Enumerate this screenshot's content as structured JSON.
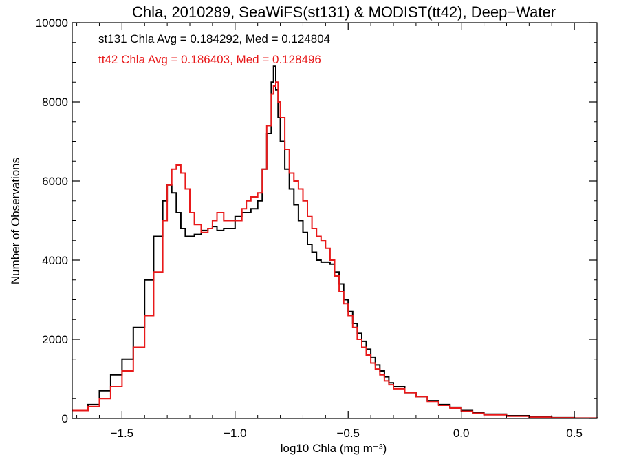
{
  "chart_data": {
    "type": "line",
    "title": "Chla, 2010289, SeaWiFS(st131) & MODIST(tt42), Deep−Water",
    "xlabel": "log10 Chla (mg m⁻³)",
    "ylabel": "Number of Observations",
    "xlim": [
      -1.72,
      0.6
    ],
    "ylim": [
      0,
      10000
    ],
    "xticks": [
      -1.5,
      -1.0,
      -0.5,
      0.0,
      0.5
    ],
    "xtick_labels": [
      "−1.5",
      "−1.0",
      "−0.5",
      "0.0",
      "0.5"
    ],
    "yticks": [
      0,
      2000,
      4000,
      6000,
      8000,
      10000
    ],
    "ytick_labels": [
      "0",
      "2000",
      "4000",
      "6000",
      "8000",
      "10000"
    ],
    "grid": false,
    "annotations": [
      {
        "text": "st131 Chla Avg = 0.184292, Med = 0.124804",
        "color": "#000000"
      },
      {
        "text": "tt42 Chla Avg = 0.186403, Med = 0.128496",
        "color": "#e8191a"
      }
    ],
    "series": [
      {
        "color": "#000000",
        "step": true,
        "x": [
          -1.72,
          -1.65,
          -1.6,
          -1.55,
          -1.5,
          -1.45,
          -1.4,
          -1.36,
          -1.32,
          -1.3,
          -1.28,
          -1.26,
          -1.24,
          -1.22,
          -1.2,
          -1.18,
          -1.15,
          -1.12,
          -1.1,
          -1.08,
          -1.05,
          -1.0,
          -0.97,
          -0.95,
          -0.93,
          -0.9,
          -0.88,
          -0.86,
          -0.84,
          -0.83,
          -0.82,
          -0.81,
          -0.8,
          -0.78,
          -0.76,
          -0.74,
          -0.72,
          -0.7,
          -0.68,
          -0.66,
          -0.64,
          -0.62,
          -0.6,
          -0.58,
          -0.56,
          -0.54,
          -0.52,
          -0.5,
          -0.48,
          -0.46,
          -0.44,
          -0.42,
          -0.4,
          -0.38,
          -0.36,
          -0.34,
          -0.32,
          -0.3,
          -0.25,
          -0.2,
          -0.15,
          -0.1,
          -0.05,
          0.0,
          0.05,
          0.1,
          0.2,
          0.3,
          0.4,
          0.5,
          0.6
        ],
        "y": [
          200,
          350,
          700,
          1100,
          1500,
          2300,
          3500,
          4600,
          5500,
          5900,
          5700,
          5200,
          4800,
          4600,
          4600,
          4650,
          4750,
          4800,
          4850,
          4750,
          4800,
          5100,
          5200,
          5200,
          5300,
          5500,
          6300,
          7200,
          8500,
          8900,
          8300,
          7600,
          7000,
          6300,
          5800,
          5400,
          5000,
          4700,
          4400,
          4200,
          4000,
          3950,
          3950,
          3900,
          3700,
          3400,
          3000,
          2700,
          2400,
          2150,
          1950,
          1750,
          1550,
          1350,
          1200,
          1050,
          900,
          800,
          650,
          550,
          450,
          350,
          280,
          200,
          150,
          110,
          70,
          40,
          20,
          10,
          5
        ]
      },
      {
        "color": "#e8191a",
        "step": true,
        "x": [
          -1.72,
          -1.65,
          -1.6,
          -1.55,
          -1.5,
          -1.45,
          -1.4,
          -1.36,
          -1.32,
          -1.3,
          -1.28,
          -1.26,
          -1.24,
          -1.22,
          -1.2,
          -1.18,
          -1.15,
          -1.12,
          -1.1,
          -1.08,
          -1.05,
          -1.0,
          -0.97,
          -0.95,
          -0.93,
          -0.9,
          -0.88,
          -0.86,
          -0.84,
          -0.83,
          -0.82,
          -0.81,
          -0.8,
          -0.78,
          -0.76,
          -0.74,
          -0.72,
          -0.7,
          -0.68,
          -0.66,
          -0.64,
          -0.62,
          -0.6,
          -0.58,
          -0.56,
          -0.54,
          -0.52,
          -0.5,
          -0.48,
          -0.46,
          -0.44,
          -0.42,
          -0.4,
          -0.38,
          -0.36,
          -0.34,
          -0.32,
          -0.3,
          -0.25,
          -0.2,
          -0.15,
          -0.1,
          -0.05,
          0.0,
          0.05,
          0.1,
          0.2,
          0.3,
          0.4,
          0.5,
          0.6
        ],
        "y": [
          200,
          300,
          500,
          800,
          1200,
          1800,
          2600,
          3700,
          5000,
          5900,
          6300,
          6400,
          6200,
          5800,
          5200,
          4900,
          4700,
          4800,
          5000,
          5200,
          5000,
          5000,
          5300,
          5500,
          5600,
          5700,
          6300,
          7400,
          8200,
          8400,
          8500,
          8000,
          7600,
          6800,
          6200,
          6000,
          5800,
          5500,
          5100,
          4800,
          4600,
          4500,
          4300,
          4000,
          3600,
          3200,
          2900,
          2600,
          2300,
          2000,
          1800,
          1600,
          1400,
          1250,
          1100,
          950,
          850,
          750,
          650,
          550,
          430,
          330,
          260,
          180,
          130,
          90,
          55,
          30,
          15,
          8,
          4
        ]
      }
    ]
  }
}
